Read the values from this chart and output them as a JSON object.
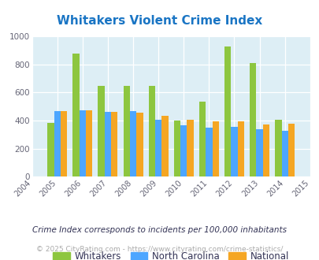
{
  "title": "Whitakers Violent Crime Index",
  "years": [
    2005,
    2006,
    2007,
    2008,
    2009,
    2010,
    2011,
    2012,
    2013,
    2014
  ],
  "whitakers": [
    385,
    880,
    648,
    648,
    648,
    400,
    535,
    930,
    808,
    408
  ],
  "north_carolina": [
    468,
    475,
    462,
    468,
    405,
    365,
    350,
    355,
    338,
    330
  ],
  "national": [
    468,
    475,
    465,
    455,
    432,
    408,
    395,
    393,
    370,
    378
  ],
  "colors": {
    "whitakers": "#8dc63f",
    "north_carolina": "#4da6ff",
    "national": "#f5a623"
  },
  "bg_color": "#ddeef5",
  "ylim": [
    0,
    1000
  ],
  "yticks": [
    0,
    200,
    400,
    600,
    800,
    1000
  ],
  "xlim_min": 2004,
  "xlim_max": 2015,
  "legend_labels": [
    "Whitakers",
    "North Carolina",
    "National"
  ],
  "footnote1": "Crime Index corresponds to incidents per 100,000 inhabitants",
  "footnote2": "© 2025 CityRating.com - https://www.cityrating.com/crime-statistics/",
  "title_color": "#1a75c4",
  "footnote1_color": "#333355",
  "footnote2_color": "#aaaaaa",
  "bar_width": 0.26
}
